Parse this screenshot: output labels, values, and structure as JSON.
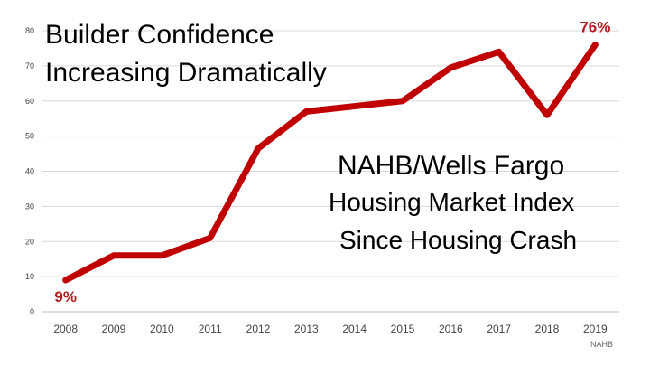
{
  "title_lines": [
    "Builder Confidence",
    "Increasing Dramatically"
  ],
  "subtitle_lines": [
    "NAHB/Wells Fargo",
    "Housing Market Index",
    "Since Housing Crash"
  ],
  "source": "NAHB",
  "colors": {
    "line": "#C00000",
    "label": "#B01E1E",
    "grid": "#d9d9d9"
  },
  "chart_data": {
    "type": "line",
    "title": "Builder Confidence Increasing Dramatically",
    "subtitle": "NAHB/Wells Fargo Housing Market Index Since Housing Crash",
    "xlabel": "",
    "ylabel": "",
    "categories": [
      "2008",
      "2009",
      "2010",
      "2011",
      "2012",
      "2013",
      "2014",
      "2015",
      "2016",
      "2017",
      "2018",
      "2019"
    ],
    "series": [
      {
        "values": [
          9,
          16,
          16,
          21,
          46.5,
          57,
          58.5,
          60,
          69.5,
          74,
          56,
          76
        ]
      }
    ],
    "data_labels": [
      {
        "index": 0,
        "text": "9%"
      },
      {
        "index": 11,
        "text": "76%"
      }
    ],
    "yticks": [
      0,
      10,
      20,
      30,
      40,
      50,
      60,
      70,
      80
    ],
    "ylim": [
      0,
      80
    ],
    "grid": true,
    "legend": "none"
  }
}
